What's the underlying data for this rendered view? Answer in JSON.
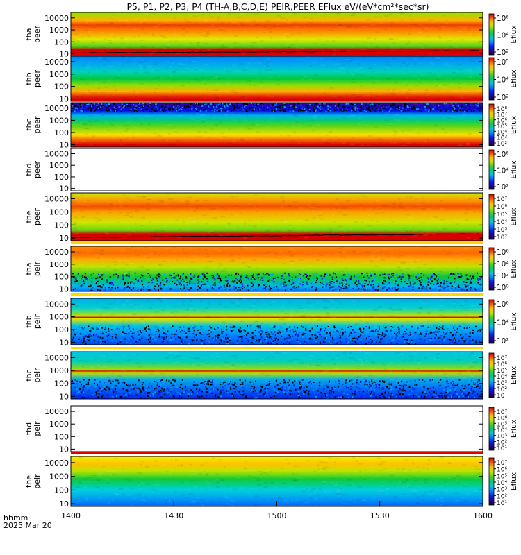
{
  "title": "P5, P1, P2, P3, P4 (TH-A,B,C,D,E) PEIR,PEER EFlux eV/(eV*cm²*sec*sr)",
  "time_axis": {
    "label": "hhmm",
    "date": "2025 Mar 20",
    "ticks": [
      "1400",
      "1430",
      "1500",
      "1530",
      "1600"
    ]
  },
  "colorbar_label": "Eflux",
  "chart_data": [
    {
      "type": "heatmap",
      "ylabel": [
        "tha",
        "peer"
      ],
      "yticks": [
        "10",
        "100",
        "1000",
        "10000"
      ],
      "fill": "full",
      "colorbar_ticks": [
        "10²",
        "10⁴",
        "10⁶"
      ],
      "colorbar_range": [
        1,
        7
      ],
      "bands": [
        {
          "e": 1,
          "v": 7
        },
        {
          "e": 1.35,
          "v": 7
        },
        {
          "e": 1.6,
          "v": 4.6
        },
        {
          "e": 2.2,
          "v": 5.4
        },
        {
          "e": 3.0,
          "v": 6.2
        },
        {
          "e": 3.4,
          "v": 6.6
        },
        {
          "e": 3.8,
          "v": 5.9
        },
        {
          "e": 4.4,
          "v": 5.0
        }
      ],
      "potential_line": true
    },
    {
      "type": "heatmap",
      "ylabel": [
        "thb",
        "peer"
      ],
      "yticks": [
        "10",
        "100",
        "1000",
        "10000"
      ],
      "fill": "full",
      "colorbar_ticks": [
        "10²",
        "10⁴",
        "10⁵"
      ],
      "colorbar_range": [
        1,
        6
      ],
      "bands": [
        {
          "e": 1,
          "v": 6
        },
        {
          "e": 1.25,
          "v": 5.7
        },
        {
          "e": 1.6,
          "v": 5.1
        },
        {
          "e": 2.1,
          "v": 4.3
        },
        {
          "e": 2.6,
          "v": 3.7
        },
        {
          "e": 3.2,
          "v": 3.2
        },
        {
          "e": 3.8,
          "v": 2.8
        },
        {
          "e": 4.4,
          "v": 2.5
        }
      ],
      "potential_line": false
    },
    {
      "type": "heatmap",
      "ylabel": [
        "thc",
        "peer"
      ],
      "yticks": [
        "10",
        "100",
        "1000",
        "10000"
      ],
      "fill": "full",
      "colorbar_ticks": [
        "10²",
        "10³",
        "10⁴",
        "10⁵",
        "10⁶",
        "10⁷",
        "10⁸"
      ],
      "colorbar_range": [
        1,
        8
      ],
      "bands": [
        {
          "e": 1,
          "v": 8
        },
        {
          "e": 1.3,
          "v": 7.4
        },
        {
          "e": 1.8,
          "v": 6.4
        },
        {
          "e": 2.5,
          "v": 5.3
        },
        {
          "e": 3.0,
          "v": 4.5
        },
        {
          "e": 3.4,
          "v": 3.6
        },
        {
          "e": 3.8,
          "v": 2.2
        },
        {
          "e": 4.4,
          "v": 1.6
        }
      ],
      "potential_line": false
    },
    {
      "type": "heatmap",
      "ylabel": [
        "thd",
        "peer"
      ],
      "yticks": [
        "10",
        "100",
        "1000",
        "10000"
      ],
      "fill": "none",
      "colorbar_ticks": [
        "10²",
        "10⁴",
        "10⁶"
      ],
      "colorbar_range": [
        1,
        7
      ],
      "bands": [],
      "potential_line": false
    },
    {
      "type": "heatmap",
      "ylabel": [
        "the",
        "peer"
      ],
      "yticks": [
        "10",
        "100",
        "1000",
        "10000"
      ],
      "fill": "full",
      "colorbar_ticks": [
        "10²",
        "10³",
        "10⁴",
        "10⁵",
        "10⁶",
        "10⁷"
      ],
      "colorbar_range": [
        1,
        7
      ],
      "bands": [
        {
          "e": 1,
          "v": 7
        },
        {
          "e": 1.3,
          "v": 7
        },
        {
          "e": 1.6,
          "v": 4.7
        },
        {
          "e": 2.2,
          "v": 5.3
        },
        {
          "e": 3.0,
          "v": 6.0
        },
        {
          "e": 3.4,
          "v": 6.5
        },
        {
          "e": 3.8,
          "v": 6.1
        },
        {
          "e": 4.4,
          "v": 5.3
        }
      ],
      "potential_line": true
    },
    {
      "type": "heatmap",
      "ylabel": [
        "tha",
        "peir"
      ],
      "yticks": [
        "10",
        "100",
        "1000",
        "10000"
      ],
      "fill": "upper",
      "colorbar_ticks": [
        "10⁰",
        "10²",
        "10⁴",
        "10⁶"
      ],
      "colorbar_range": [
        -1,
        7
      ],
      "bands": [
        {
          "e": 0.8,
          "v": 1.2
        },
        {
          "e": 1.2,
          "v": 2.0
        },
        {
          "e": 2.0,
          "v": 3.4
        },
        {
          "e": 2.8,
          "v": 4.6
        },
        {
          "e": 3.4,
          "v": 5.6
        },
        {
          "e": 3.9,
          "v": 6.1
        },
        {
          "e": 4.4,
          "v": 5.8
        }
      ],
      "potential_line": false
    },
    {
      "type": "heatmap",
      "ylabel": [
        "thb",
        "peir"
      ],
      "yticks": [
        "10",
        "100",
        "1000",
        "10000"
      ],
      "fill": "upper",
      "colorbar_ticks": [
        "10²",
        "10⁴",
        "10⁶"
      ],
      "colorbar_range": [
        1,
        7
      ],
      "bands": [
        {
          "e": 0.8,
          "v": 2.4
        },
        {
          "e": 1.5,
          "v": 2.8
        },
        {
          "e": 2.3,
          "v": 3.4
        },
        {
          "e": 2.85,
          "v": 5.4
        },
        {
          "e": 2.95,
          "v": 7.0
        },
        {
          "e": 3.05,
          "v": 5.2
        },
        {
          "e": 3.7,
          "v": 3.6
        },
        {
          "e": 4.4,
          "v": 3.2
        }
      ],
      "potential_line": false
    },
    {
      "type": "heatmap",
      "ylabel": [
        "thc",
        "peir"
      ],
      "yticks": [
        "10",
        "100",
        "1000",
        "10000"
      ],
      "fill": "upper",
      "colorbar_ticks": [
        "10¹",
        "10²",
        "10³",
        "10⁴",
        "10⁵",
        "10⁶",
        "10⁷"
      ],
      "colorbar_range": [
        1,
        7
      ],
      "bands": [
        {
          "e": 0.8,
          "v": 2.2
        },
        {
          "e": 1.5,
          "v": 2.6
        },
        {
          "e": 2.3,
          "v": 3.2
        },
        {
          "e": 2.85,
          "v": 5.2
        },
        {
          "e": 2.95,
          "v": 6.9
        },
        {
          "e": 3.05,
          "v": 5.0
        },
        {
          "e": 3.7,
          "v": 3.7
        },
        {
          "e": 4.4,
          "v": 3.4
        }
      ],
      "potential_line": false
    },
    {
      "type": "heatmap",
      "ylabel": [
        "thd",
        "peir"
      ],
      "yticks": [
        "10",
        "100",
        "1000",
        "10000"
      ],
      "fill": "none",
      "colorbar_ticks": [
        "10¹",
        "10²",
        "10³",
        "10⁴",
        "10⁵",
        "10⁶",
        "10⁷"
      ],
      "colorbar_range": [
        1,
        7
      ],
      "bands": [],
      "potential_line": false
    },
    {
      "type": "heatmap",
      "ylabel": [
        "the",
        "peir"
      ],
      "yticks": [
        "10",
        "100",
        "1000",
        "10000"
      ],
      "fill": "full",
      "colorbar_ticks": [
        "10¹",
        "10²",
        "10³",
        "10⁴",
        "10⁵",
        "10⁶",
        "10⁷"
      ],
      "colorbar_range": [
        1,
        7
      ],
      "bands": [
        {
          "e": 0.8,
          "v": 2.6
        },
        {
          "e": 1.3,
          "v": 3.0
        },
        {
          "e": 2.0,
          "v": 3.5
        },
        {
          "e": 2.8,
          "v": 4.3
        },
        {
          "e": 3.4,
          "v": 5.2
        },
        {
          "e": 3.9,
          "v": 5.8
        },
        {
          "e": 4.4,
          "v": 5.5
        }
      ],
      "potential_line": false
    }
  ]
}
